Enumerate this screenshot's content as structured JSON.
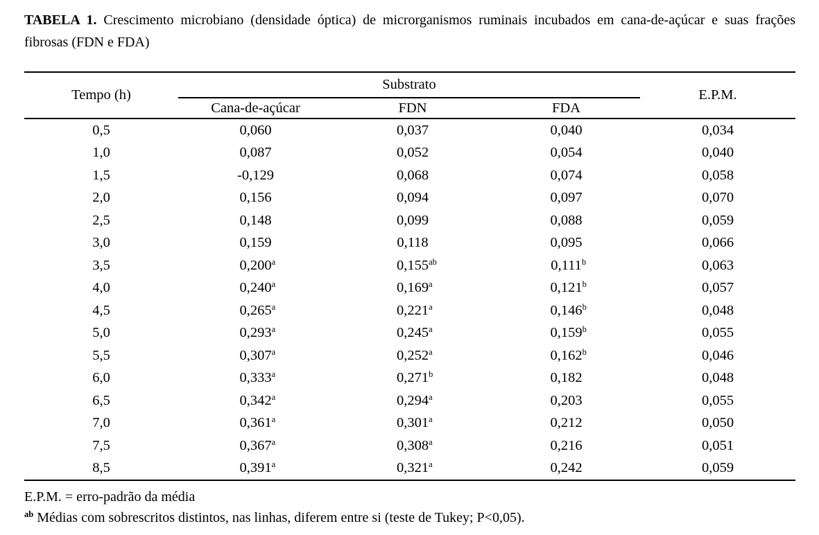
{
  "page": {
    "background": "#ffffff",
    "text_color": "#000000"
  },
  "title": {
    "label": "TABELA 1.",
    "text": "Crescimento microbiano (densidade óptica) de microrganismos ruminais incubados em cana-de-açúcar e suas frações fibrosas (FDN e FDA)"
  },
  "table": {
    "headers": {
      "tempo": "Tempo (h)",
      "substrato": "Substrato",
      "cana": "Cana-de-açúcar",
      "fdn": "FDN",
      "fda": "FDA",
      "epm": "E.P.M."
    },
    "rows": [
      {
        "tempo": "0,5",
        "cana": "0,060",
        "cana_sup": "",
        "fdn": "0,037",
        "fdn_sup": "",
        "fda": "0,040",
        "fda_sup": "",
        "epm": "0,034"
      },
      {
        "tempo": "1,0",
        "cana": "0,087",
        "cana_sup": "",
        "fdn": "0,052",
        "fdn_sup": "",
        "fda": "0,054",
        "fda_sup": "",
        "epm": "0,040"
      },
      {
        "tempo": "1,5",
        "cana": "-0,129",
        "cana_sup": "",
        "fdn": "0,068",
        "fdn_sup": "",
        "fda": "0,074",
        "fda_sup": "",
        "epm": "0,058"
      },
      {
        "tempo": "2,0",
        "cana": "0,156",
        "cana_sup": "",
        "fdn": "0,094",
        "fdn_sup": "",
        "fda": "0,097",
        "fda_sup": "",
        "epm": "0,070"
      },
      {
        "tempo": "2,5",
        "cana": "0,148",
        "cana_sup": "",
        "fdn": "0,099",
        "fdn_sup": "",
        "fda": "0,088",
        "fda_sup": "",
        "epm": "0,059"
      },
      {
        "tempo": "3,0",
        "cana": "0,159",
        "cana_sup": "",
        "fdn": "0,118",
        "fdn_sup": "",
        "fda": "0,095",
        "fda_sup": "",
        "epm": "0,066"
      },
      {
        "tempo": "3,5",
        "cana": "0,200",
        "cana_sup": "a",
        "fdn": "0,155",
        "fdn_sup": "ab",
        "fda": "0,111",
        "fda_sup": "b",
        "epm": "0,063"
      },
      {
        "tempo": "4,0",
        "cana": "0,240",
        "cana_sup": "a",
        "fdn": "0,169",
        "fdn_sup": "a",
        "fda": "0,121",
        "fda_sup": "b",
        "epm": "0,057"
      },
      {
        "tempo": "4,5",
        "cana": "0,265",
        "cana_sup": "a",
        "fdn": "0,221",
        "fdn_sup": "a",
        "fda": "0,146",
        "fda_sup": "b",
        "epm": "0,048"
      },
      {
        "tempo": "5,0",
        "cana": "0,293",
        "cana_sup": "a",
        "fdn": "0,245",
        "fdn_sup": "a",
        "fda": "0,159",
        "fda_sup": "b",
        "epm": "0,055"
      },
      {
        "tempo": "5,5",
        "cana": "0,307",
        "cana_sup": "a",
        "fdn": "0,252",
        "fdn_sup": "a",
        "fda": "0,162",
        "fda_sup": "b",
        "epm": "0,046"
      },
      {
        "tempo": "6,0",
        "cana": "0,333",
        "cana_sup": "a",
        "fdn": "0,271",
        "fdn_sup": "b",
        "fda": "0,182",
        "fda_sup": "",
        "epm": "0,048"
      },
      {
        "tempo": "6,5",
        "cana": "0,342",
        "cana_sup": "a",
        "fdn": "0,294",
        "fdn_sup": "a",
        "fda": "0,203",
        "fda_sup": "",
        "epm": "0,055"
      },
      {
        "tempo": "7,0",
        "cana": "0,361",
        "cana_sup": "a",
        "fdn": "0,301",
        "fdn_sup": "a",
        "fda": "0,212",
        "fda_sup": "",
        "epm": "0,050"
      },
      {
        "tempo": "7,5",
        "cana": "0,367",
        "cana_sup": "a",
        "fdn": "0,308",
        "fdn_sup": "a",
        "fda": "0,216",
        "fda_sup": "",
        "epm": "0,051"
      },
      {
        "tempo": "8,5",
        "cana": "0,391",
        "cana_sup": "a",
        "fdn": "0,321",
        "fdn_sup": "a",
        "fda": "0,242",
        "fda_sup": "",
        "epm": "0,059"
      }
    ]
  },
  "footnotes": {
    "epm": "E.P.M. = erro-padrão da média",
    "tukey_marker": "ab",
    "tukey": "Médias com sobrescritos distintos, nas linhas, diferem entre si (teste de Tukey; P<0,05)."
  }
}
